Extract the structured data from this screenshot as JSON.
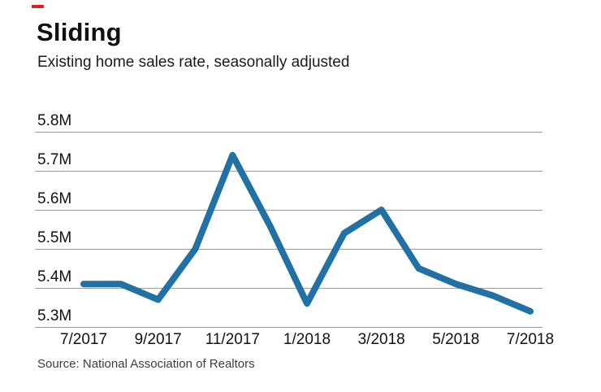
{
  "header": {
    "title": "Sliding",
    "subtitle": "Existing home sales rate, seasonally adjusted"
  },
  "footer": {
    "source": "Source: National Association of Realtors"
  },
  "colors": {
    "line": "#2171a5",
    "accent_dash": "#dc1e26",
    "grid": "#9e9e9e",
    "text": "#111111"
  },
  "chart_data": {
    "type": "line",
    "title": "Sliding",
    "subtitle": "Existing home sales rate, seasonally adjusted",
    "source": "Source: National Association of Realtors",
    "x": [
      "7/2017",
      "8/2017",
      "9/2017",
      "10/2017",
      "11/2017",
      "12/2017",
      "1/2018",
      "2/2018",
      "3/2018",
      "4/2018",
      "5/2018",
      "6/2018",
      "7/2018"
    ],
    "values": [
      5.41,
      5.41,
      5.37,
      5.5,
      5.74,
      5.56,
      5.36,
      5.54,
      5.6,
      5.45,
      5.41,
      5.38,
      5.34
    ],
    "unit": "M",
    "y_tick_labels": [
      "5.8M",
      "5.7M",
      "5.6M",
      "5.5M",
      "5.4M",
      "5.3M"
    ],
    "y_tick_values": [
      5.8,
      5.7,
      5.6,
      5.5,
      5.4,
      5.3
    ],
    "x_tick_labels": [
      "7/2017",
      "9/2017",
      "11/2017",
      "1/2018",
      "3/2018",
      "5/2018",
      "7/2018"
    ],
    "ylim": [
      5.3,
      5.8
    ],
    "grid": "horizontal",
    "legend": "none"
  }
}
